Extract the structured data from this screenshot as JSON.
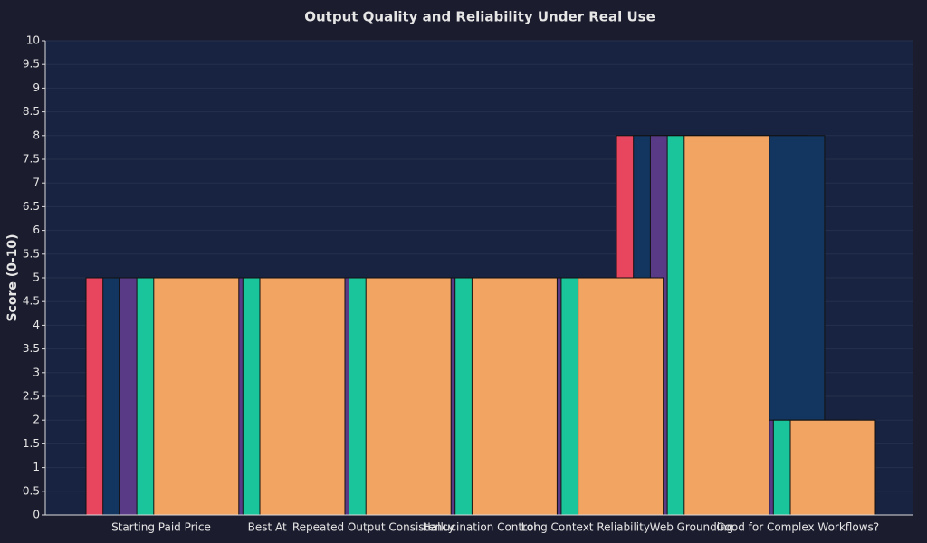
{
  "chart_data": {
    "type": "bar",
    "title": "Output Quality and Reliability Under Real Use",
    "y_label": "Score (0-10)",
    "categories": [
      "Starting Paid Price",
      "Best At",
      "Repeated Output Consistency",
      "Hallucination Control",
      "Long Context Reliability",
      "Web Grounding",
      "Good for Complex Workflows?"
    ],
    "series": [
      {
        "color": "#e8455e",
        "values": [
          5,
          5,
          5,
          5,
          5,
          8,
          8
        ]
      },
      {
        "color": "#133660",
        "values": [
          5,
          5,
          5,
          5,
          5,
          8,
          8
        ]
      },
      {
        "color": "#583a86",
        "values": [
          5,
          5,
          5,
          5,
          5,
          8,
          2
        ]
      },
      {
        "color": "#1bc59b",
        "values": [
          5,
          5,
          5,
          5,
          5,
          8,
          2
        ]
      },
      {
        "color": "#f2a463",
        "values": [
          5,
          5,
          5,
          5,
          5,
          8,
          2
        ]
      }
    ],
    "ylim": [
      0,
      10
    ],
    "yticks": [
      0,
      0.5,
      1,
      1.5,
      2,
      2.5,
      3,
      3.5,
      4,
      4.5,
      5,
      5.5,
      6,
      6.5,
      7,
      7.5,
      8,
      8.5,
      9,
      9.5,
      10
    ],
    "grid": true
  }
}
